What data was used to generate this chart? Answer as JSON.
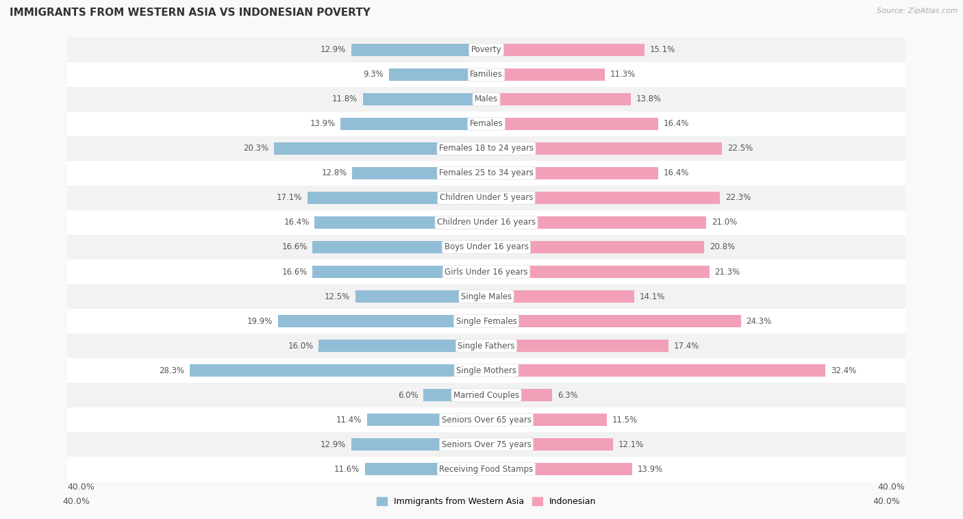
{
  "title": "IMMIGRANTS FROM WESTERN ASIA VS INDONESIAN POVERTY",
  "source": "Source: ZipAtlas.com",
  "categories": [
    "Poverty",
    "Families",
    "Males",
    "Females",
    "Females 18 to 24 years",
    "Females 25 to 34 years",
    "Children Under 5 years",
    "Children Under 16 years",
    "Boys Under 16 years",
    "Girls Under 16 years",
    "Single Males",
    "Single Females",
    "Single Fathers",
    "Single Mothers",
    "Married Couples",
    "Seniors Over 65 years",
    "Seniors Over 75 years",
    "Receiving Food Stamps"
  ],
  "western_asia": [
    12.9,
    9.3,
    11.8,
    13.9,
    20.3,
    12.8,
    17.1,
    16.4,
    16.6,
    16.6,
    12.5,
    19.9,
    16.0,
    28.3,
    6.0,
    11.4,
    12.9,
    11.6
  ],
  "indonesian": [
    15.1,
    11.3,
    13.8,
    16.4,
    22.5,
    16.4,
    22.3,
    21.0,
    20.8,
    21.3,
    14.1,
    24.3,
    17.4,
    32.4,
    6.3,
    11.5,
    12.1,
    13.9
  ],
  "western_asia_color": "#92bdd6",
  "indonesian_color": "#f2a0b8",
  "row_colors": [
    "#f2f2f2",
    "#ffffff"
  ],
  "background_color": "#f9f9f9",
  "xlim": 40.0,
  "legend_label_left": "Immigrants from Western Asia",
  "legend_label_right": "Indonesian",
  "bar_height": 0.52,
  "title_fontsize": 11,
  "label_fontsize": 8.5,
  "cat_fontsize": 8.5
}
